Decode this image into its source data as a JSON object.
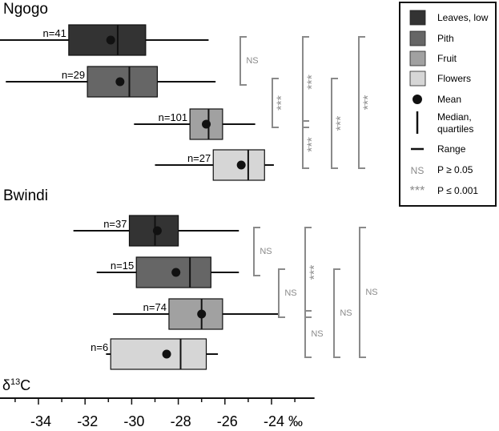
{
  "chart_data": {
    "type": "boxplot",
    "x_axis": {
      "label_symbol": "δ",
      "label_superscript": "13",
      "label_suffix": "C",
      "unit": "‰",
      "range": [
        -36,
        -22.5
      ],
      "ticks": [
        -34,
        -32,
        -30,
        -28,
        -26,
        -24
      ],
      "tick_labels": [
        "-34",
        "-32",
        "-30",
        "-28",
        "-26",
        "-24 ‰"
      ]
    },
    "legend": {
      "position": "top-right",
      "items": [
        {
          "label": "Leaves, low",
          "kind": "swatch",
          "color": "#333333"
        },
        {
          "label": "Pith",
          "kind": "swatch",
          "color": "#666666"
        },
        {
          "label": "Fruit",
          "kind": "swatch",
          "color": "#a1a1a1"
        },
        {
          "label": "Flowers",
          "kind": "swatch",
          "color": "#d6d6d6"
        },
        {
          "label": "Mean",
          "kind": "dot"
        },
        {
          "label": "Median,",
          "label2": "quartiles",
          "kind": "vline"
        },
        {
          "label": "Range",
          "kind": "hline"
        },
        {
          "label": "P ≥ 0.05",
          "kind": "text",
          "symbol": "NS"
        },
        {
          "label": "P ≤ 0.001",
          "kind": "text",
          "symbol": "***"
        }
      ]
    },
    "sites": [
      {
        "name": "Ngogo",
        "groups": [
          {
            "category": "Leaves, low",
            "color": "#333333",
            "n_label": "n=41",
            "min": -35.8,
            "q1": -32.7,
            "median": -30.6,
            "q3": -29.4,
            "max": -26.7,
            "mean": -30.9
          },
          {
            "category": "Pith",
            "color": "#666666",
            "n_label": "n=29",
            "min": -35.4,
            "q1": -31.9,
            "median": -30.1,
            "q3": -28.9,
            "max": -26.4,
            "mean": -30.5
          },
          {
            "category": "Fruit",
            "color": "#a1a1a1",
            "n_label": "n=101",
            "min": -29.9,
            "q1": -27.5,
            "median": -26.7,
            "q3": -26.1,
            "max": -24.7,
            "mean": -26.8
          },
          {
            "category": "Flowers",
            "color": "#d6d6d6",
            "n_label": "n=27",
            "min": -29.0,
            "q1": -26.5,
            "median": -25.0,
            "q3": -24.3,
            "max": -23.9,
            "mean": -25.3
          }
        ],
        "comparisons": [
          {
            "label": "NS",
            "from": 0,
            "to": 1,
            "column": 0
          },
          {
            "label": "***",
            "from": 1,
            "to": 2,
            "column": 1
          },
          {
            "label": "***",
            "from": 0,
            "to": 2,
            "column": 2
          },
          {
            "label": "***",
            "from": 2,
            "to": 3,
            "column": 2
          },
          {
            "label": "***",
            "from": 1,
            "to": 3,
            "column": 3
          },
          {
            "label": "***",
            "from": 0,
            "to": 3,
            "column": 4
          }
        ]
      },
      {
        "name": "Bwindi",
        "groups": [
          {
            "category": "Leaves, low",
            "color": "#333333",
            "n_label": "n=37",
            "min": -32.5,
            "q1": -30.1,
            "median": -29.0,
            "q3": -28.0,
            "max": -25.4,
            "mean": -28.9
          },
          {
            "category": "Pith",
            "color": "#666666",
            "n_label": "n=15",
            "min": -31.5,
            "q1": -29.8,
            "median": -27.5,
            "q3": -26.6,
            "max": -25.4,
            "mean": -28.1
          },
          {
            "category": "Fruit",
            "color": "#a1a1a1",
            "n_label": "n=74",
            "min": -30.8,
            "q1": -28.4,
            "median": -27.0,
            "q3": -26.1,
            "max": -23.7,
            "mean": -27.0
          },
          {
            "category": "Flowers",
            "color": "#d6d6d6",
            "n_label": "n=6",
            "min": -31.1,
            "q1": -30.9,
            "median": -27.9,
            "q3": -26.8,
            "max": -26.3,
            "mean": -28.5
          }
        ],
        "comparisons": [
          {
            "label": "NS",
            "from": 0,
            "to": 1,
            "column": 0
          },
          {
            "label": "NS",
            "from": 1,
            "to": 2,
            "column": 1
          },
          {
            "label": "***",
            "from": 0,
            "to": 2,
            "column": 2
          },
          {
            "label": "NS",
            "from": 2,
            "to": 3,
            "column": 2
          },
          {
            "label": "NS",
            "from": 1,
            "to": 3,
            "column": 3
          },
          {
            "label": "NS",
            "from": 0,
            "to": 3,
            "column": 4
          }
        ]
      }
    ]
  }
}
